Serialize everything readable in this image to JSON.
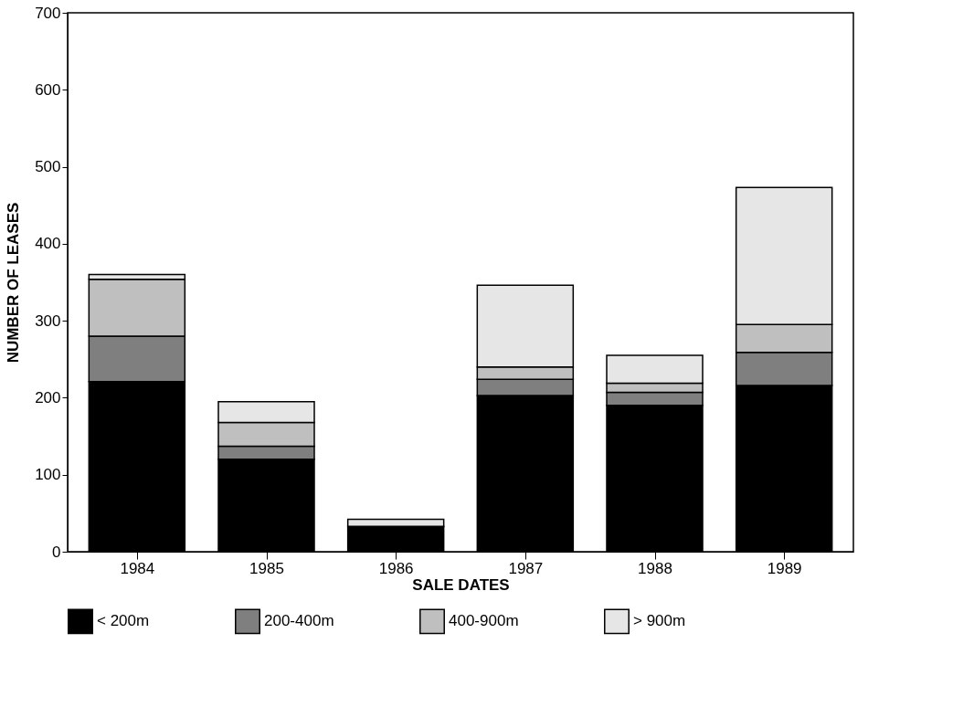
{
  "chart_data": {
    "type": "bar",
    "stacked": true,
    "xlabel": "SALE DATES",
    "ylabel": "NUMBER OF LEASES",
    "categories": [
      "1984",
      "1985",
      "1986",
      "1987",
      "1988",
      "1989"
    ],
    "series": [
      {
        "name": "< 200m",
        "color": "#000000",
        "values": [
          221,
          120,
          33,
          203,
          190,
          216
        ]
      },
      {
        "name": "200-400m",
        "color": "#7f7f7f",
        "values": [
          59,
          17,
          0,
          21,
          17,
          43
        ]
      },
      {
        "name": "400-900m",
        "color": "#bfbfbf",
        "values": [
          74,
          31,
          0,
          16,
          12,
          36
        ]
      },
      {
        "name": "> 900m",
        "color": "#e6e6e6",
        "values": [
          6,
          27,
          9,
          106,
          36,
          178
        ]
      }
    ],
    "ylim": [
      0,
      700
    ],
    "yticks": [
      0,
      100,
      200,
      300,
      400,
      500,
      600,
      700
    ],
    "grid": false,
    "legend": "bottom"
  }
}
